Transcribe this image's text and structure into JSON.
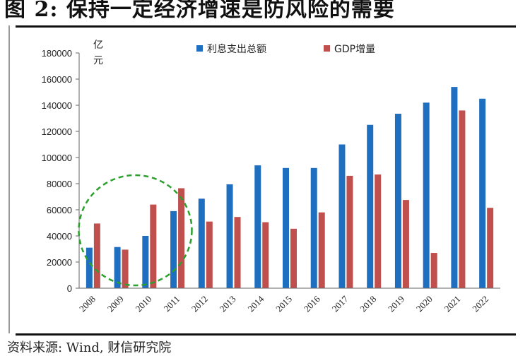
{
  "figure": {
    "title": "图 2: 保持一定经济增速是防风险的需要",
    "source": "资料来源: Wind, 财信研究院"
  },
  "chart_data": {
    "type": "bar",
    "categories": [
      "2008",
      "2009",
      "2010",
      "2011",
      "2012",
      "2013",
      "2014",
      "2015",
      "2016",
      "2017",
      "2018",
      "2019",
      "2020",
      "2021",
      "2022"
    ],
    "series": [
      {
        "name": "利息支出总额",
        "color": "#1f6fc0",
        "values": [
          31000,
          31500,
          40000,
          59000,
          68500,
          79500,
          94000,
          92000,
          92000,
          110000,
          125000,
          133500,
          142000,
          154000,
          145000
        ]
      },
      {
        "name": "GDP增量",
        "color": "#c0504d",
        "values": [
          49500,
          29500,
          64000,
          76500,
          51000,
          54500,
          50500,
          45500,
          58000,
          86000,
          87000,
          67500,
          27000,
          136000,
          61500
        ]
      }
    ],
    "ylabel": "亿元",
    "ylim": [
      0,
      180000
    ],
    "yticks": [
      0,
      20000,
      40000,
      60000,
      80000,
      100000,
      120000,
      140000,
      160000,
      180000
    ],
    "legend": "top-center",
    "grid": false,
    "annotation": {
      "shape": "dashed-circle",
      "color": "#2ca02c",
      "span": [
        "2009",
        "2010"
      ]
    }
  }
}
